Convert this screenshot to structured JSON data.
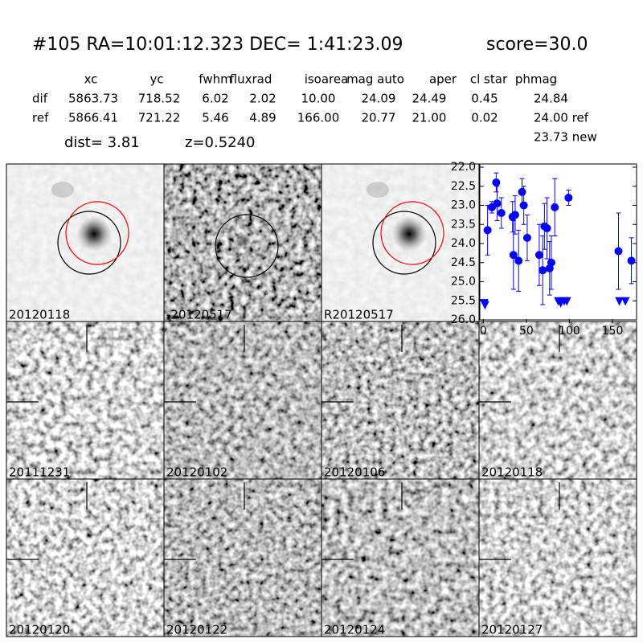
{
  "header": {
    "title": "#105   RA=10:01:12.323 DEC= 1:41:23.09",
    "score": "score=30.0"
  },
  "table": {
    "columns": [
      "xc",
      "yc",
      "fwhm",
      "fluxrad",
      "isoarea",
      "mag auto",
      "aper",
      "cl star",
      "phmag"
    ],
    "rows": [
      [
        "dif",
        "5863.73",
        "718.52",
        "6.02",
        "2.02",
        "10.00",
        "24.09",
        "24.49",
        "0.45",
        "24.84"
      ],
      [
        "ref",
        "5866.41",
        "721.22",
        "5.46",
        "4.89",
        "166.00",
        "20.77",
        "21.00",
        "0.02",
        "24.00 ref"
      ]
    ],
    "extra": "23.73 new"
  },
  "dist": "dist=  3.81",
  "z": "z=0.5240",
  "stamps": [
    {
      "label": "20120118"
    },
    {
      "label": "-20120517"
    },
    {
      "label": "R20120517"
    },
    {
      "label": "20111231"
    },
    {
      "label": "20120102"
    },
    {
      "label": "20120106"
    },
    {
      "label": "20120118",
      "color": "#ff0000"
    },
    {
      "label": "20120120"
    },
    {
      "label": "20120122"
    },
    {
      "label": "20120124"
    },
    {
      "label": "20120127"
    }
  ],
  "chart_data": {
    "type": "errorbar",
    "series": [
      {
        "color": "#0000ff",
        "marker": "circle",
        "x": [
          5,
          10,
          15,
          16,
          21,
          34,
          35,
          37,
          41,
          45,
          47,
          51,
          65,
          69,
          71,
          74,
          77,
          79,
          83,
          99,
          157,
          172
        ],
        "values": [
          23.65,
          23.05,
          22.4,
          22.95,
          23.2,
          23.3,
          24.3,
          23.25,
          24.45,
          22.65,
          23.0,
          23.85,
          24.3,
          24.7,
          23.55,
          23.6,
          24.65,
          24.5,
          23.05,
          22.8,
          24.2,
          24.45
        ],
        "errors": [
          0.65,
          0.15,
          0.25,
          0.45,
          0.4,
          0.4,
          0.9,
          0.5,
          0.8,
          0.35,
          0.5,
          0.6,
          0.8,
          0.9,
          0.6,
          0.8,
          0.7,
          0.7,
          0.75,
          0.2,
          1.0,
          0.6
        ]
      },
      {
        "color": "#0000ff",
        "marker": "triangle-down",
        "x": [
          1,
          2,
          87,
          90,
          94,
          97,
          158,
          165
        ],
        "values": [
          25.55,
          25.6,
          25.5,
          25.55,
          25.5,
          25.5,
          25.5,
          25.5
        ]
      }
    ],
    "xlim": [
      -4,
      178
    ],
    "ylim": [
      26,
      22
    ],
    "xticks": [
      0,
      50,
      100,
      150
    ],
    "yticks": [
      {
        "value": 22,
        "label": "22.0"
      },
      22.5,
      {
        "value": 23,
        "label": "23.0"
      },
      23.5,
      {
        "value": 24,
        "label": "24.0"
      },
      24.5,
      {
        "value": 25,
        "label": "25.0"
      },
      25.5,
      {
        "value": 26,
        "label": "26.0"
      }
    ]
  }
}
